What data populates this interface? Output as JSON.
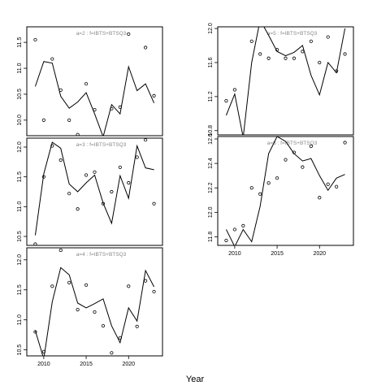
{
  "xlabel": "Year",
  "chart_data": [
    {
      "type": "line",
      "label": "a=2 : f=IBTS+BTSQ3",
      "xlim": [
        2008,
        2024
      ],
      "ylim": [
        9.7,
        11.8
      ],
      "yticks": [
        10.0,
        10.5,
        11.0,
        11.5
      ],
      "xticks": [],
      "x": [
        2009,
        2010,
        2011,
        2012,
        2013,
        2014,
        2015,
        2016,
        2017,
        2018,
        2019,
        2020,
        2021,
        2022,
        2023
      ],
      "fitted": [
        10.65,
        11.13,
        11.1,
        10.46,
        10.23,
        10.35,
        10.53,
        10.12,
        9.68,
        10.3,
        10.12,
        11.03,
        10.57,
        10.7,
        10.33
      ],
      "observed": [
        11.55,
        10.0,
        11.18,
        10.58,
        10.0,
        9.72,
        10.7,
        10.2,
        9.66,
        10.22,
        10.25,
        11.66,
        9.6,
        11.4,
        10.47
      ]
    },
    {
      "type": "line",
      "label": "a=3 : f=IBTS+BTSQ3",
      "xlim": [
        2008,
        2024
      ],
      "ylim": [
        10.35,
        12.15
      ],
      "yticks": [
        10.5,
        11.0,
        11.5,
        12.0
      ],
      "xticks": [],
      "x": [
        2009,
        2010,
        2011,
        2012,
        2013,
        2014,
        2015,
        2016,
        2017,
        2018,
        2019,
        2020,
        2021,
        2022,
        2023
      ],
      "fitted": [
        10.52,
        11.55,
        12.08,
        11.98,
        11.38,
        11.25,
        11.4,
        11.53,
        11.06,
        10.72,
        11.52,
        11.14,
        12.02,
        11.65,
        11.62
      ],
      "observed": [
        10.37,
        11.5,
        12.02,
        11.78,
        11.22,
        10.96,
        11.53,
        11.58,
        11.05,
        11.25,
        11.66,
        11.4,
        11.83,
        12.12,
        11.05
      ]
    },
    {
      "type": "line",
      "label": "a=4 : f=IBTS+BTSQ3",
      "xlim": [
        2008,
        2024
      ],
      "ylim": [
        10.4,
        12.2
      ],
      "yticks": [
        10.5,
        11.0,
        11.5,
        12.0
      ],
      "xticks": [
        2010,
        2015,
        2020
      ],
      "x": [
        2009,
        2010,
        2011,
        2012,
        2013,
        2014,
        2015,
        2016,
        2017,
        2018,
        2019,
        2020,
        2021,
        2022,
        2023
      ],
      "fitted": [
        10.82,
        10.35,
        11.3,
        11.87,
        11.75,
        11.28,
        11.2,
        11.27,
        11.35,
        10.9,
        10.62,
        11.2,
        10.98,
        11.82,
        11.55
      ],
      "observed": [
        10.8,
        10.47,
        11.56,
        12.16,
        11.62,
        11.17,
        11.58,
        11.13,
        10.9,
        10.45,
        10.7,
        11.56,
        10.89,
        11.65,
        11.47
      ]
    },
    {
      "type": "line",
      "label": "a=5 : f=IBTS+BTSQ3",
      "xlim": [
        2008,
        2024
      ],
      "ylim": [
        10.75,
        12.02
      ],
      "yticks": [
        10.8,
        11.2,
        11.6,
        12.0
      ],
      "xticks": [],
      "x": [
        2009,
        2010,
        2011,
        2012,
        2013,
        2014,
        2015,
        2016,
        2017,
        2018,
        2019,
        2020,
        2021,
        2022,
        2023
      ],
      "fitted": [
        10.98,
        11.23,
        10.72,
        11.6,
        12.1,
        11.92,
        11.73,
        11.68,
        11.72,
        11.8,
        11.45,
        11.22,
        11.6,
        11.48,
        12.0
      ],
      "observed": [
        11.15,
        11.28,
        10.72,
        11.85,
        11.7,
        11.65,
        11.75,
        11.65,
        11.65,
        11.73,
        11.85,
        11.6,
        11.9,
        11.5,
        11.7
      ]
    },
    {
      "type": "line",
      "label": "a=6 : f=IBTS+BTSQ3",
      "xlim": [
        2008,
        2024
      ],
      "ylim": [
        11.73,
        12.62
      ],
      "yticks": [
        11.8,
        12.0,
        12.2,
        12.4,
        12.6
      ],
      "xticks": [
        2010,
        2015,
        2020
      ],
      "x": [
        2009,
        2010,
        2011,
        2012,
        2013,
        2014,
        2015,
        2016,
        2017,
        2018,
        2019,
        2020,
        2021,
        2022,
        2023
      ],
      "fitted": [
        11.86,
        11.72,
        11.86,
        11.76,
        12.05,
        12.48,
        12.62,
        12.58,
        12.48,
        12.42,
        12.44,
        12.3,
        12.18,
        12.28,
        12.31
      ],
      "observed": [
        11.77,
        11.86,
        11.89,
        12.2,
        12.15,
        12.24,
        12.28,
        12.43,
        12.49,
        12.37,
        12.54,
        12.12,
        12.23,
        12.21,
        12.57
      ]
    }
  ]
}
